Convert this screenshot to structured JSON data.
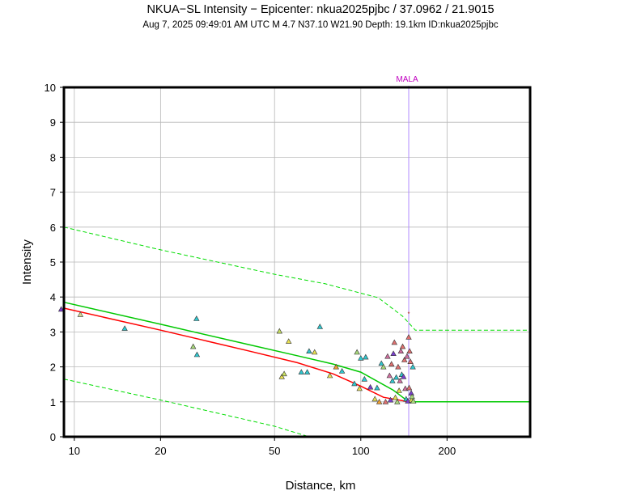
{
  "header": {
    "title": "NKUA−SL Intensity −   Epicenter: nkua2025pjbc / 37.0962 / 21.9015",
    "subtitle": "Aug  7, 2025 09:49:01 AM UTC    M 4.7    N37.10 W21.90    Depth: 19.1km    ID:nkua2025pjbc"
  },
  "chart_data": {
    "type": "scatter",
    "xlabel": "Distance, km",
    "ylabel": "Intensity",
    "xscale": "log",
    "xlim": [
      9.2,
      390
    ],
    "ylim": [
      0,
      10
    ],
    "x_ticks": [
      10,
      20,
      50,
      100,
      200
    ],
    "y_ticks": [
      0,
      1,
      2,
      3,
      4,
      5,
      6,
      7,
      8,
      9,
      10
    ],
    "grid": true,
    "colors": {
      "median_curve": "#ff0000",
      "prediction_curve": "#00c800",
      "bounds": "#00dd00",
      "station_marker_line": "#b08cff",
      "station_label": "#c000c0"
    },
    "vertical_marker": {
      "label": "MALA",
      "x": 147,
      "y": 3.55
    },
    "curves": {
      "red": {
        "x": [
          9.2,
          20,
          40,
          60,
          80,
          100,
          120,
          147
        ],
        "y": [
          3.68,
          3.05,
          2.47,
          2.12,
          1.8,
          1.45,
          1.13,
          1.0
        ]
      },
      "green": {
        "x": [
          9.2,
          20,
          40,
          60,
          80,
          100,
          130,
          147,
          390
        ],
        "y": [
          3.85,
          3.22,
          2.65,
          2.32,
          2.08,
          1.85,
          1.33,
          1.0,
          1.0
        ]
      },
      "upper": {
        "x": [
          9.2,
          20,
          50,
          75,
          115,
          140,
          155,
          390
        ],
        "y": [
          6.0,
          5.35,
          4.65,
          4.38,
          3.98,
          3.45,
          3.05,
          3.05
        ]
      },
      "lower": {
        "x": [
          9.2,
          20,
          50,
          66
        ],
        "y": [
          1.65,
          1.05,
          0.3,
          0.0
        ]
      }
    },
    "stations": [
      {
        "x": 9.0,
        "y": 3.65,
        "c": "#7b3fd0"
      },
      {
        "x": 10.5,
        "y": 3.5,
        "c": "#d4d48c"
      },
      {
        "x": 15.0,
        "y": 3.1,
        "c": "#30c8d0"
      },
      {
        "x": 26.0,
        "y": 2.58,
        "c": "#a8d87a"
      },
      {
        "x": 26.8,
        "y": 2.35,
        "c": "#30c8d0"
      },
      {
        "x": 26.7,
        "y": 3.38,
        "c": "#30c8d0"
      },
      {
        "x": 52,
        "y": 3.02,
        "c": "#c8e060"
      },
      {
        "x": 56,
        "y": 2.73,
        "c": "#e8e050"
      },
      {
        "x": 53,
        "y": 1.72,
        "c": "#e8e050"
      },
      {
        "x": 54,
        "y": 1.8,
        "c": "#c8e060"
      },
      {
        "x": 62,
        "y": 1.85,
        "c": "#30c8d0"
      },
      {
        "x": 65,
        "y": 1.85,
        "c": "#30c8d0"
      },
      {
        "x": 66,
        "y": 2.45,
        "c": "#30c8d0"
      },
      {
        "x": 69,
        "y": 2.42,
        "c": "#e8e050"
      },
      {
        "x": 72,
        "y": 3.15,
        "c": "#30c8d0"
      },
      {
        "x": 78,
        "y": 1.75,
        "c": "#e8e050"
      },
      {
        "x": 82,
        "y": 2.0,
        "c": "#f0a030"
      },
      {
        "x": 86,
        "y": 1.88,
        "c": "#30c8d0"
      },
      {
        "x": 95,
        "y": 1.52,
        "c": "#30c8d0"
      },
      {
        "x": 97,
        "y": 2.42,
        "c": "#a8d87a"
      },
      {
        "x": 100,
        "y": 2.25,
        "c": "#30c8d0"
      },
      {
        "x": 99,
        "y": 1.38,
        "c": "#e8e050"
      },
      {
        "x": 104,
        "y": 2.28,
        "c": "#30c8d0"
      },
      {
        "x": 103,
        "y": 1.65,
        "c": "#30c8d0"
      },
      {
        "x": 108,
        "y": 1.42,
        "c": "#7b3fd0"
      },
      {
        "x": 112,
        "y": 1.08,
        "c": "#e8e050"
      },
      {
        "x": 114,
        "y": 1.4,
        "c": "#30c8d0"
      },
      {
        "x": 116,
        "y": 1.0,
        "c": "#f0a030"
      },
      {
        "x": 118,
        "y": 2.1,
        "c": "#30c8d0"
      },
      {
        "x": 120,
        "y": 2.0,
        "c": "#a8d87a"
      },
      {
        "x": 122,
        "y": 1.0,
        "c": "#e07070"
      },
      {
        "x": 124,
        "y": 2.3,
        "c": "#d070a0"
      },
      {
        "x": 126,
        "y": 1.75,
        "c": "#d070a0"
      },
      {
        "x": 127,
        "y": 1.05,
        "c": "#7b3fd0"
      },
      {
        "x": 128,
        "y": 2.08,
        "c": "#e07070"
      },
      {
        "x": 129,
        "y": 1.6,
        "c": "#30c8d0"
      },
      {
        "x": 130,
        "y": 2.38,
        "c": "#7b3fd0"
      },
      {
        "x": 131,
        "y": 2.7,
        "c": "#e07070"
      },
      {
        "x": 132,
        "y": 1.12,
        "c": "#e8e050"
      },
      {
        "x": 133,
        "y": 1.7,
        "c": "#30c8d0"
      },
      {
        "x": 134,
        "y": 1.0,
        "c": "#a8d87a"
      },
      {
        "x": 135,
        "y": 2.0,
        "c": "#e07070"
      },
      {
        "x": 136,
        "y": 1.32,
        "c": "#e8e050"
      },
      {
        "x": 137,
        "y": 1.6,
        "c": "#d070a0"
      },
      {
        "x": 138,
        "y": 2.45,
        "c": "#d070a0"
      },
      {
        "x": 139,
        "y": 1.78,
        "c": "#30c8d0"
      },
      {
        "x": 140,
        "y": 2.58,
        "c": "#e07070"
      },
      {
        "x": 141,
        "y": 1.72,
        "c": "#7b3fd0"
      },
      {
        "x": 142,
        "y": 2.2,
        "c": "#e07070"
      },
      {
        "x": 143,
        "y": 1.38,
        "c": "#d070a0"
      },
      {
        "x": 144,
        "y": 1.08,
        "c": "#30c8d0"
      },
      {
        "x": 145,
        "y": 2.3,
        "c": "#d070a0"
      },
      {
        "x": 146,
        "y": 1.02,
        "c": "#7b3fd0"
      },
      {
        "x": 147,
        "y": 2.85,
        "c": "#e07070"
      },
      {
        "x": 147.5,
        "y": 1.4,
        "c": "#e07070"
      },
      {
        "x": 148,
        "y": 2.45,
        "c": "#e07070"
      },
      {
        "x": 149,
        "y": 2.15,
        "c": "#e07070"
      },
      {
        "x": 150,
        "y": 1.25,
        "c": "#7b3fd0"
      },
      {
        "x": 150.5,
        "y": 1.05,
        "c": "#e8e050"
      },
      {
        "x": 151,
        "y": 1.15,
        "c": "#a8d87a"
      },
      {
        "x": 152,
        "y": 2.0,
        "c": "#30c8d0"
      },
      {
        "x": 152.5,
        "y": 1.02,
        "c": "#a8d87a"
      }
    ]
  }
}
